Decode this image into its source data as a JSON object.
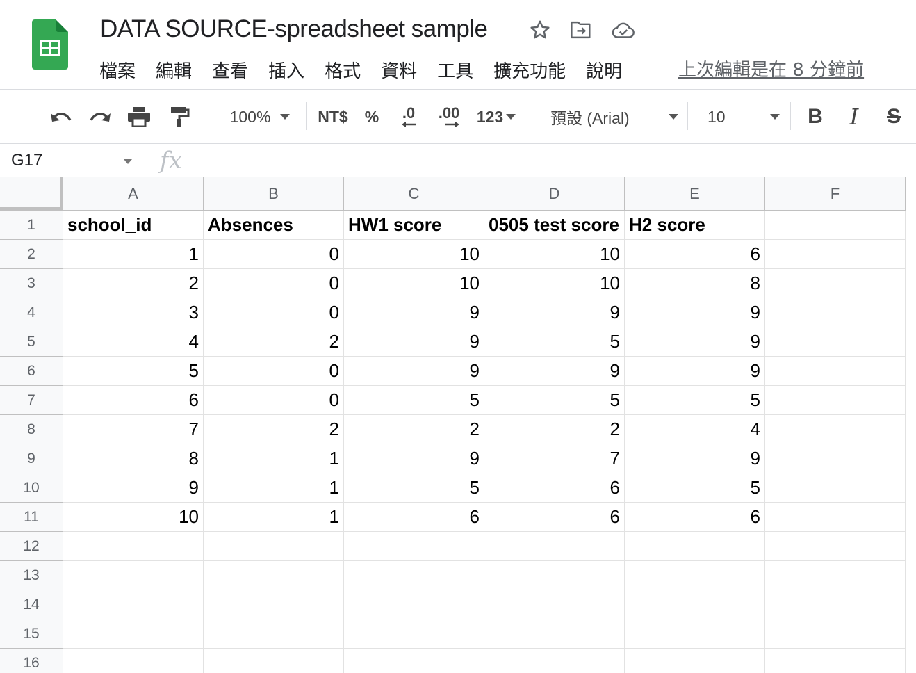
{
  "header": {
    "title": "DATA SOURCE-spreadsheet sample",
    "icons": [
      "star-icon",
      "move-to-folder-icon",
      "cloud-saved-icon"
    ],
    "menu": [
      "檔案",
      "編輯",
      "查看",
      "插入",
      "格式",
      "資料",
      "工具",
      "擴充功能",
      "說明"
    ],
    "last_edit": "上次編輯是在 8 分鐘前"
  },
  "toolbar": {
    "zoom": "100%",
    "currency": "NT$",
    "percent": "%",
    "decrease_decimal": ".0",
    "increase_decimal": ".00",
    "more_formats": "123",
    "font": "預設 (Arial)",
    "font_size": "10",
    "bold": "B",
    "italic": "I",
    "strikethrough": "S"
  },
  "formula_bar": {
    "cell_ref": "G17",
    "fx": "fx",
    "value": ""
  },
  "sheet": {
    "columns": [
      "A",
      "B",
      "C",
      "D",
      "E",
      "F"
    ],
    "row_numbers": [
      "1",
      "2",
      "3",
      "4",
      "5",
      "6",
      "7",
      "8",
      "9",
      "10",
      "11",
      "12",
      "13",
      "14",
      "15",
      "16"
    ],
    "header_row": [
      "school_id",
      "Absences",
      "HW1 score",
      "0505 test score",
      "H2 score",
      ""
    ],
    "rows": [
      [
        "1",
        "0",
        "10",
        "10",
        "6"
      ],
      [
        "2",
        "0",
        "10",
        "10",
        "8"
      ],
      [
        "3",
        "0",
        "9",
        "9",
        "9"
      ],
      [
        "4",
        "2",
        "9",
        "5",
        "9"
      ],
      [
        "5",
        "0",
        "9",
        "9",
        "9"
      ],
      [
        "6",
        "0",
        "5",
        "5",
        "5"
      ],
      [
        "7",
        "2",
        "2",
        "2",
        "4"
      ],
      [
        "8",
        "1",
        "9",
        "7",
        "9"
      ],
      [
        "9",
        "1",
        "5",
        "6",
        "5"
      ],
      [
        "10",
        "1",
        "6",
        "6",
        "6"
      ]
    ]
  }
}
